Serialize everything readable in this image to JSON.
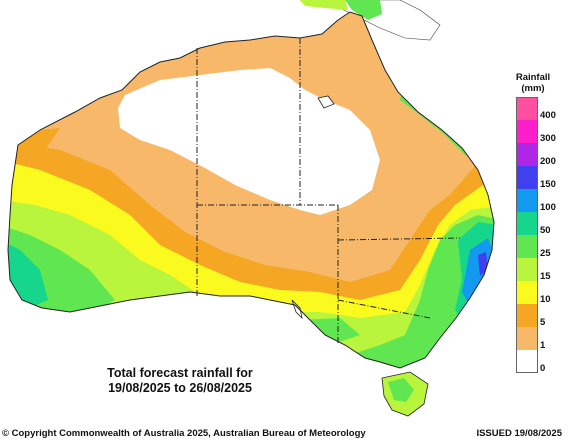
{
  "caption": {
    "line1": "Total forecast rainfall for",
    "line2": "19/08/2025 to 26/08/2025"
  },
  "legend": {
    "title_line1": "Rainfall",
    "title_line2": "(mm)",
    "levels": [
      {
        "label": "400",
        "color": "#ff4fa0"
      },
      {
        "label": "300",
        "color": "#ff1ecc"
      },
      {
        "label": "200",
        "color": "#b026e6"
      },
      {
        "label": "150",
        "color": "#4040f0"
      },
      {
        "label": "100",
        "color": "#1499f0"
      },
      {
        "label": "50",
        "color": "#16d68c"
      },
      {
        "label": "25",
        "color": "#5fe650"
      },
      {
        "label": "15",
        "color": "#b8f53c"
      },
      {
        "label": "10",
        "color": "#fafa1e"
      },
      {
        "label": "5",
        "color": "#f5a623"
      },
      {
        "label": "1",
        "color": "#f8b86a"
      },
      {
        "label": "0",
        "color": "#ffffff"
      }
    ]
  },
  "footer": {
    "copyright": "© Copyright Commonwealth of Australia 2025, Australian Bureau of Meteorology",
    "issued": "ISSUED 19/08/2025"
  }
}
